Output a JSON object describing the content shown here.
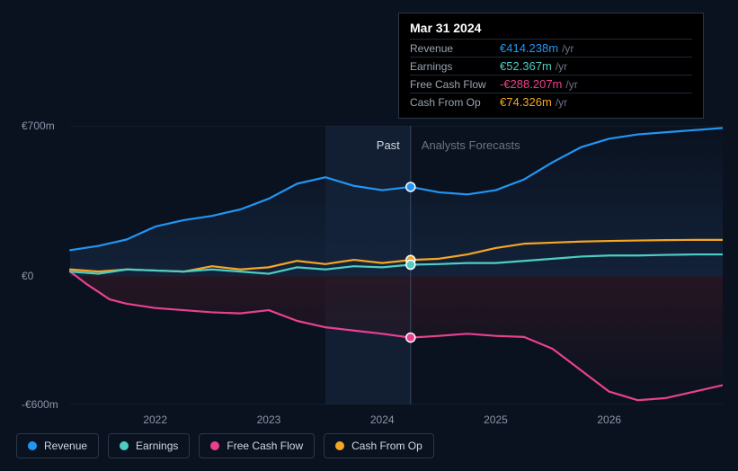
{
  "chart": {
    "type": "line",
    "background_color": "#0a1220",
    "grid_color": "#1a2436",
    "text_color": "#8a96a8",
    "ylim": [
      -600,
      700
    ],
    "y_ticks": [
      {
        "value": 700,
        "label": "€700m"
      },
      {
        "value": 0,
        "label": "€0"
      },
      {
        "value": -600,
        "label": "-€600m"
      }
    ],
    "x_ticks": [
      "2022",
      "2023",
      "2024",
      "2025",
      "2026"
    ],
    "x_domain": [
      2021.25,
      2027.0
    ],
    "divider_x": 2024.25,
    "past_label": "Past",
    "forecast_label": "Analysts Forecasts",
    "highlight_band": {
      "start": 2023.5,
      "end": 2024.25,
      "fill": "#1a2a44",
      "opacity": 0.55
    },
    "zero_fill_top": "#14243c",
    "zero_fill_bottom": "#2a1622",
    "series": {
      "revenue": {
        "label": "Revenue",
        "color": "#2196f3",
        "line_width": 2.2,
        "points": [
          [
            2021.25,
            120
          ],
          [
            2021.5,
            140
          ],
          [
            2021.75,
            170
          ],
          [
            2022.0,
            230
          ],
          [
            2022.25,
            260
          ],
          [
            2022.5,
            280
          ],
          [
            2022.75,
            310
          ],
          [
            2023.0,
            360
          ],
          [
            2023.25,
            430
          ],
          [
            2023.5,
            460
          ],
          [
            2023.75,
            420
          ],
          [
            2024.0,
            400
          ],
          [
            2024.25,
            415
          ],
          [
            2024.5,
            390
          ],
          [
            2024.75,
            380
          ],
          [
            2025.0,
            400
          ],
          [
            2025.25,
            450
          ],
          [
            2025.5,
            530
          ],
          [
            2025.75,
            600
          ],
          [
            2026.0,
            640
          ],
          [
            2026.25,
            660
          ],
          [
            2026.5,
            670
          ],
          [
            2026.75,
            680
          ],
          [
            2027.0,
            690
          ]
        ]
      },
      "earnings": {
        "label": "Earnings",
        "color": "#4ecdc4",
        "line_width": 2.2,
        "points": [
          [
            2021.25,
            20
          ],
          [
            2021.5,
            10
          ],
          [
            2021.75,
            30
          ],
          [
            2022.0,
            25
          ],
          [
            2022.25,
            20
          ],
          [
            2022.5,
            30
          ],
          [
            2022.75,
            20
          ],
          [
            2023.0,
            10
          ],
          [
            2023.25,
            40
          ],
          [
            2023.5,
            30
          ],
          [
            2023.75,
            45
          ],
          [
            2024.0,
            40
          ],
          [
            2024.25,
            52
          ],
          [
            2024.5,
            55
          ],
          [
            2024.75,
            60
          ],
          [
            2025.0,
            60
          ],
          [
            2025.25,
            70
          ],
          [
            2025.5,
            80
          ],
          [
            2025.75,
            90
          ],
          [
            2026.0,
            95
          ],
          [
            2026.25,
            95
          ],
          [
            2026.5,
            98
          ],
          [
            2026.75,
            100
          ],
          [
            2027.0,
            100
          ]
        ]
      },
      "fcf": {
        "label": "Free Cash Flow",
        "color": "#e9418f",
        "line_width": 2.2,
        "points": [
          [
            2021.25,
            20
          ],
          [
            2021.4,
            -40
          ],
          [
            2021.6,
            -110
          ],
          [
            2021.75,
            -130
          ],
          [
            2022.0,
            -150
          ],
          [
            2022.25,
            -160
          ],
          [
            2022.5,
            -170
          ],
          [
            2022.75,
            -175
          ],
          [
            2023.0,
            -160
          ],
          [
            2023.25,
            -210
          ],
          [
            2023.5,
            -240
          ],
          [
            2023.75,
            -255
          ],
          [
            2024.0,
            -270
          ],
          [
            2024.25,
            -288
          ],
          [
            2024.5,
            -280
          ],
          [
            2024.75,
            -270
          ],
          [
            2025.0,
            -280
          ],
          [
            2025.25,
            -285
          ],
          [
            2025.5,
            -340
          ],
          [
            2025.75,
            -440
          ],
          [
            2026.0,
            -540
          ],
          [
            2026.25,
            -580
          ],
          [
            2026.5,
            -570
          ],
          [
            2026.75,
            -540
          ],
          [
            2027.0,
            -510
          ]
        ]
      },
      "cfo": {
        "label": "Cash From Op",
        "color": "#f5a623",
        "line_width": 2.2,
        "points": [
          [
            2021.25,
            30
          ],
          [
            2021.5,
            20
          ],
          [
            2021.75,
            30
          ],
          [
            2022.0,
            25
          ],
          [
            2022.25,
            20
          ],
          [
            2022.5,
            45
          ],
          [
            2022.75,
            30
          ],
          [
            2023.0,
            40
          ],
          [
            2023.25,
            70
          ],
          [
            2023.5,
            55
          ],
          [
            2023.75,
            75
          ],
          [
            2024.0,
            60
          ],
          [
            2024.25,
            74
          ],
          [
            2024.5,
            80
          ],
          [
            2024.75,
            100
          ],
          [
            2025.0,
            130
          ],
          [
            2025.25,
            150
          ],
          [
            2025.5,
            155
          ],
          [
            2025.75,
            160
          ],
          [
            2026.0,
            163
          ],
          [
            2026.25,
            165
          ],
          [
            2026.5,
            167
          ],
          [
            2026.75,
            168
          ],
          [
            2027.0,
            168
          ]
        ]
      }
    },
    "markers": [
      {
        "series": "revenue",
        "x": 2024.25,
        "y": 415
      },
      {
        "series": "cfo",
        "x": 2024.25,
        "y": 74
      },
      {
        "series": "earnings",
        "x": 2024.25,
        "y": 52
      },
      {
        "series": "fcf",
        "x": 2024.25,
        "y": -288
      }
    ]
  },
  "tooltip": {
    "title": "Mar 31 2024",
    "unit": "/yr",
    "rows": [
      {
        "label": "Revenue",
        "value": "€414.238m",
        "color": "#2196f3"
      },
      {
        "label": "Earnings",
        "value": "€52.367m",
        "color": "#4ecdc4"
      },
      {
        "label": "Free Cash Flow",
        "value": "-€288.207m",
        "color": "#e9418f"
      },
      {
        "label": "Cash From Op",
        "value": "€74.326m",
        "color": "#f5a623"
      }
    ]
  },
  "legend": [
    {
      "key": "revenue",
      "label": "Revenue",
      "color": "#2196f3"
    },
    {
      "key": "earnings",
      "label": "Earnings",
      "color": "#4ecdc4"
    },
    {
      "key": "fcf",
      "label": "Free Cash Flow",
      "color": "#e9418f"
    },
    {
      "key": "cfo",
      "label": "Cash From Op",
      "color": "#f5a623"
    }
  ]
}
